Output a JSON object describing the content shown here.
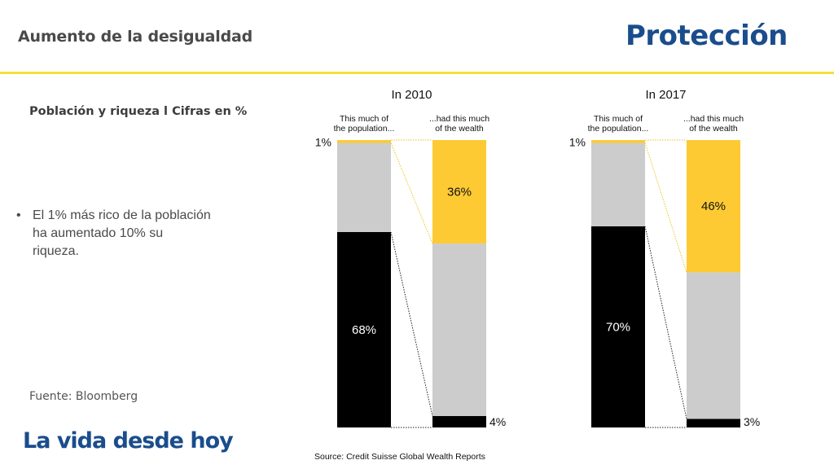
{
  "header": {
    "title": "Aumento de la desigualdad",
    "logo_text": "Protección"
  },
  "subtitle": "Población y riqueza l Cifras en %",
  "bullet": {
    "marker": "•",
    "text": "El 1% más rico de la población ha aumentado 10% su riqueza."
  },
  "source_left": "Fuente: Bloomberg",
  "tagline": "La vida desde hoy",
  "colors": {
    "brand_blue": "#1a4d8c",
    "accent_yellow": "#f2e13a",
    "wealth_yellow": "#fdca34",
    "gray": "#cccccc",
    "black": "#000000"
  },
  "chart_data": {
    "type": "bar",
    "stacked": true,
    "source": "Source: Credit Suisse Global Wealth Reports",
    "column_headers": {
      "population": "This much of\nthe population...",
      "wealth": "...had this much\nof the wealth"
    },
    "panels": [
      {
        "title": "In 2010",
        "population": [
          {
            "group": "bottom",
            "value": 68,
            "color": "#000000",
            "label": "68%"
          },
          {
            "group": "middle",
            "value": 31,
            "color": "#cccccc",
            "label": ""
          },
          {
            "group": "top",
            "value": 1,
            "color": "#fdca34",
            "label": "1%"
          }
        ],
        "wealth": [
          {
            "group": "bottom",
            "value": 4,
            "color": "#000000",
            "label": "4%"
          },
          {
            "group": "middle",
            "value": 60,
            "color": "#cccccc",
            "label": ""
          },
          {
            "group": "top",
            "value": 36,
            "color": "#fdca34",
            "label": "36%"
          }
        ]
      },
      {
        "title": "In 2017",
        "population": [
          {
            "group": "bottom",
            "value": 70,
            "color": "#000000",
            "label": "70%"
          },
          {
            "group": "middle",
            "value": 29,
            "color": "#cccccc",
            "label": ""
          },
          {
            "group": "top",
            "value": 1,
            "color": "#fdca34",
            "label": "1%"
          }
        ],
        "wealth": [
          {
            "group": "bottom",
            "value": 3,
            "color": "#000000",
            "label": "3%"
          },
          {
            "group": "middle",
            "value": 51,
            "color": "#cccccc",
            "label": ""
          },
          {
            "group": "top",
            "value": 46,
            "color": "#fdca34",
            "label": "46%"
          }
        ]
      }
    ],
    "ylim": [
      0,
      100
    ],
    "grid": false
  }
}
